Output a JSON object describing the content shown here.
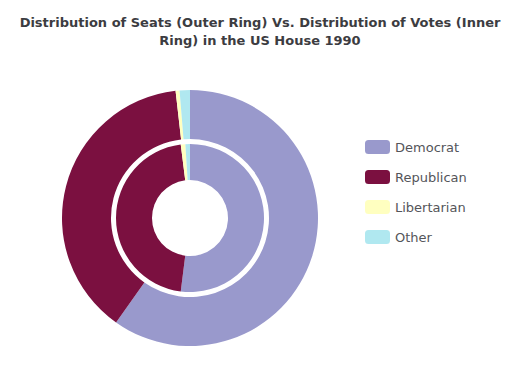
{
  "chart_data": {
    "type": "pie",
    "title": "Distribution of Seats (Outer Ring) Vs. Distribution of Votes (Inner\nRing) in the US House 1990",
    "categories": [
      "Democrat",
      "Republican",
      "Libertarian",
      "Other"
    ],
    "series": [
      {
        "values": [
          59.8,
          38.4,
          0.5,
          1.3
        ]
      },
      {
        "values": [
          52.0,
          46.0,
          1.0,
          1.0
        ]
      }
    ],
    "colors": [
      "#9999cc",
      "#7b1040",
      "#ffffc0",
      "#b0e8f0"
    ],
    "legend": "right"
  }
}
